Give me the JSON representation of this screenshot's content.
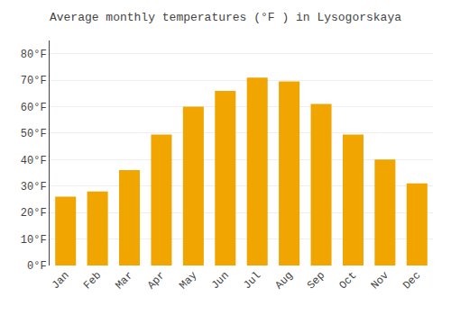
{
  "chart_data": {
    "type": "bar",
    "title": "Average monthly temperatures (°F ) in Lysogorskaya",
    "categories": [
      "Jan",
      "Feb",
      "Mar",
      "Apr",
      "May",
      "Jun",
      "Jul",
      "Aug",
      "Sep",
      "Oct",
      "Nov",
      "Dec"
    ],
    "values": [
      26,
      28,
      36,
      49.5,
      60,
      66,
      71,
      69.5,
      61,
      49.5,
      40,
      31
    ],
    "color": "#F0A500",
    "ylim": [
      0,
      85
    ],
    "yticks": [
      {
        "value": 0,
        "label": "0°F"
      },
      {
        "value": 10,
        "label": "10°F"
      },
      {
        "value": 20,
        "label": "20°F"
      },
      {
        "value": 30,
        "label": "30°F"
      },
      {
        "value": 40,
        "label": "40°F"
      },
      {
        "value": 50,
        "label": "50°F"
      },
      {
        "value": 60,
        "label": "60°F"
      },
      {
        "value": 70,
        "label": "70°F"
      },
      {
        "value": 80,
        "label": "80°F"
      }
    ],
    "grid": true
  }
}
